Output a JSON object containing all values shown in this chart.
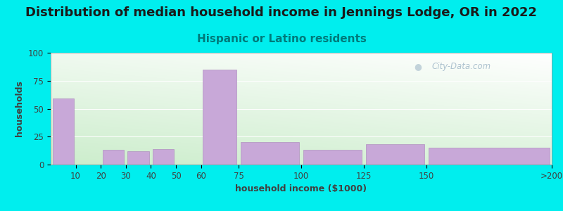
{
  "title": "Distribution of median household income in Jennings Lodge, OR in 2022",
  "subtitle": "Hispanic or Latino residents",
  "xlabel": "household income ($1000)",
  "ylabel": "households",
  "background_color": "#00EEEE",
  "bar_color": "#C8A8D8",
  "bar_edge_color": "#B090C0",
  "categories": [
    "10",
    "20",
    "30",
    "40",
    "50",
    "60",
    "75",
    "100",
    "125",
    "150",
    ">200"
  ],
  "left_edges": [
    0,
    10,
    20,
    30,
    40,
    50,
    60,
    75,
    100,
    125,
    150
  ],
  "right_edges": [
    10,
    20,
    30,
    40,
    50,
    60,
    75,
    100,
    125,
    150,
    200
  ],
  "values": [
    59,
    0,
    13,
    12,
    14,
    0,
    85,
    20,
    13,
    18,
    15
  ],
  "tick_positions": [
    10,
    20,
    30,
    40,
    50,
    60,
    75,
    100,
    125,
    150,
    200
  ],
  "tick_labels": [
    "10",
    "20",
    "30",
    "40",
    "50",
    "60",
    "75",
    "100",
    "125",
    "150",
    ">200"
  ],
  "ylim": [
    0,
    100
  ],
  "yticks": [
    0,
    25,
    50,
    75,
    100
  ],
  "xlim": [
    0,
    200
  ],
  "title_fontsize": 13,
  "subtitle_fontsize": 11,
  "axis_label_fontsize": 9,
  "tick_fontsize": 8.5,
  "watermark_text": "City-Data.com",
  "watermark_color": "#A0B8C8"
}
